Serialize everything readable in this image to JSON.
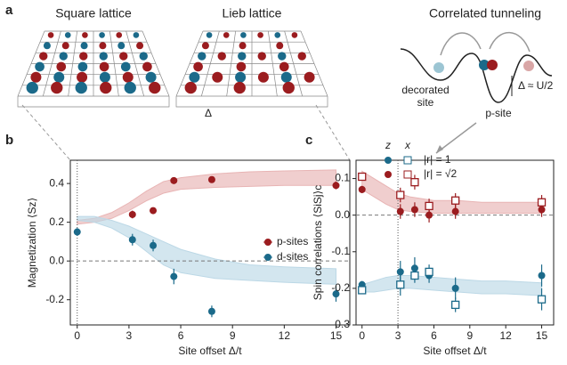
{
  "figure": {
    "panel_a": "a",
    "panel_b": "b",
    "panel_c": "c",
    "square_title": "Square lattice",
    "lieb_title": "Lieb lattice",
    "tunneling_title": "Correlated tunneling",
    "delta": "Δ",
    "decorated_1": "decorated",
    "decorated_2": "site",
    "gap": "Δ ≈ U/2",
    "p_site": "p-site"
  },
  "chart_data": [
    {
      "type": "scatter",
      "ylabel": "Magnetization ⟨Sz⟩",
      "xlabel": "Site offset Δ/t",
      "xlim": [
        -0.4,
        15.8
      ],
      "ylim": [
        -0.33,
        0.52
      ],
      "xticks": [
        0,
        3,
        6,
        9,
        12,
        15
      ],
      "yticks": [
        -0.2,
        {
          "value": 0,
          "label": "0.0"
        },
        0.2,
        0.4
      ],
      "hline": 0,
      "vline": 0,
      "legend": "right",
      "bands": [
        {
          "color": "#e8b4b4",
          "x": [
            0,
            1,
            2,
            3,
            4,
            5,
            6,
            8,
            10,
            12,
            15
          ],
          "lower": [
            0.19,
            0.2,
            0.22,
            0.26,
            0.31,
            0.35,
            0.37,
            0.38,
            0.385,
            0.39,
            0.39
          ],
          "upper": [
            0.21,
            0.22,
            0.25,
            0.3,
            0.36,
            0.41,
            0.43,
            0.45,
            0.46,
            0.465,
            0.47
          ]
        },
        {
          "color": "#bcd8e6",
          "x": [
            0,
            1,
            2,
            3,
            4,
            5,
            6,
            8,
            10,
            12,
            15
          ],
          "lower": [
            0.21,
            0.2,
            0.17,
            0.12,
            0.05,
            -0.02,
            -0.06,
            -0.09,
            -0.1,
            -0.11,
            -0.12
          ],
          "upper": [
            0.23,
            0.23,
            0.21,
            0.18,
            0.14,
            0.1,
            0.06,
            0.01,
            -0.02,
            -0.03,
            -0.04
          ]
        }
      ],
      "series": [
        {
          "name": "p-sites",
          "color": "#9b1c1f",
          "marker": "filled",
          "x": [
            3.2,
            4.4,
            5.6,
            7.8,
            15
          ],
          "values": [
            0.24,
            0.26,
            0.415,
            0.42,
            0.39
          ],
          "yerr": [
            0.02,
            0.015,
            0.015,
            0.015,
            0.02
          ]
        },
        {
          "name": "d-sites",
          "color": "#1b6a8a",
          "marker": "filled",
          "x": [
            0,
            3.2,
            4.4,
            5.6,
            7.8,
            15
          ],
          "values": [
            0.15,
            0.11,
            0.08,
            -0.08,
            -0.26,
            -0.17
          ],
          "yerr": [
            0.02,
            0.03,
            0.03,
            0.04,
            0.03,
            0.04
          ]
        }
      ]
    },
    {
      "type": "scatter",
      "ylabel": "Spin correlations ⟨SiSj⟩c",
      "xlabel": "Site offset Δ/t",
      "xlim": [
        -0.5,
        16
      ],
      "ylim": [
        -0.3,
        0.15
      ],
      "xticks": [
        0,
        3,
        6,
        9,
        12,
        15
      ],
      "yticks": [
        -0.3,
        -0.2,
        -0.1,
        {
          "value": 0,
          "label": "0.0"
        },
        0.1
      ],
      "hline": 0,
      "vline": 3,
      "legend_table": {
        "columns": [
          "z",
          "x"
        ],
        "rows": [
          "|r| = 1",
          "|r| = √2"
        ]
      },
      "bands": [
        {
          "color": "#e8b4b4",
          "x": [
            0,
            1,
            2,
            3,
            4,
            6,
            8,
            10,
            12,
            15
          ],
          "lower": [
            0.07,
            0.05,
            0.03,
            0.015,
            0.01,
            0.005,
            0.005,
            0.005,
            0.005,
            0.005
          ],
          "upper": [
            0.12,
            0.1,
            0.08,
            0.06,
            0.05,
            0.04,
            0.04,
            0.035,
            0.035,
            0.035
          ]
        },
        {
          "color": "#bcd8e6",
          "x": [
            0,
            1,
            2,
            3,
            4,
            6,
            8,
            10,
            12,
            15
          ],
          "lower": [
            -0.21,
            -0.21,
            -0.205,
            -0.2,
            -0.2,
            -0.205,
            -0.21,
            -0.215,
            -0.215,
            -0.22
          ],
          "upper": [
            -0.19,
            -0.18,
            -0.17,
            -0.165,
            -0.165,
            -0.17,
            -0.175,
            -0.18,
            -0.18,
            -0.185
          ]
        }
      ],
      "series": [
        {
          "color": "#1b6a8a",
          "marker": "filled",
          "x": [
            0,
            3.2,
            4.4,
            5.6,
            7.8,
            15
          ],
          "values": [
            -0.19,
            -0.155,
            -0.145,
            -0.165,
            -0.2,
            -0.165
          ],
          "yerr": [
            0.01,
            0.03,
            0.03,
            0.02,
            0.03,
            0.03
          ]
        },
        {
          "color": "#1b6a8a",
          "marker": "open",
          "x": [
            0,
            3.2,
            4.4,
            5.6,
            7.8,
            15
          ],
          "values": [
            -0.205,
            -0.19,
            -0.165,
            -0.155,
            -0.245,
            -0.23
          ],
          "yerr": [
            0.01,
            0.03,
            0.02,
            0.02,
            0.02,
            0.03
          ]
        },
        {
          "color": "#9b1c1f",
          "marker": "filled",
          "x": [
            0,
            3.2,
            4.4,
            5.6,
            7.8,
            15
          ],
          "values": [
            0.07,
            0.01,
            0.015,
            0.0,
            0.01,
            0.015
          ],
          "yerr": [
            0.01,
            0.02,
            0.02,
            0.02,
            0.02,
            0.02
          ]
        },
        {
          "color": "#9b1c1f",
          "marker": "open",
          "x": [
            0,
            3.2,
            4.4,
            5.6,
            7.8,
            15
          ],
          "values": [
            0.105,
            0.055,
            0.09,
            0.025,
            0.04,
            0.035
          ],
          "yerr": [
            0.01,
            0.02,
            0.02,
            0.02,
            0.02,
            0.02
          ]
        }
      ]
    }
  ]
}
